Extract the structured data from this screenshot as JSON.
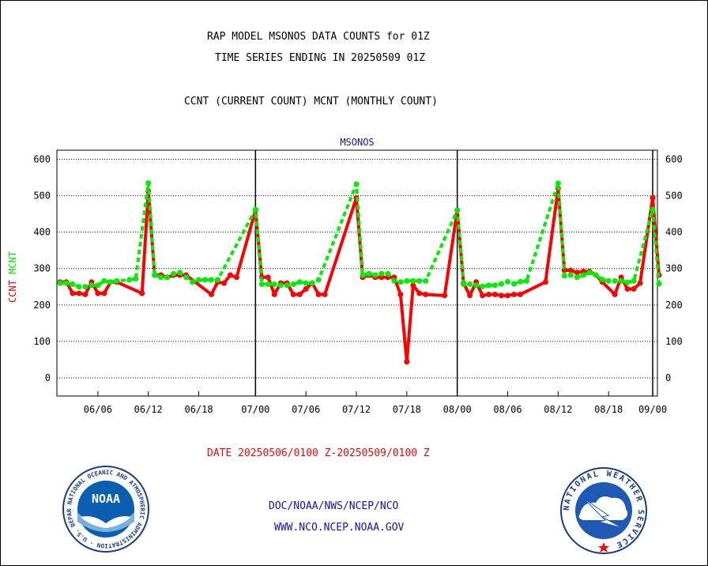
{
  "header": {
    "title": "RAP MODEL MSONOS DATA COUNTS for 01Z",
    "time_series": "TIME SERIES ENDING IN 20250509 01Z",
    "subtitle": "CCNT (CURRENT COUNT) MCNT (MONTHLY COUNT)"
  },
  "footer": {
    "date_range": "DATE 20250506/0100 Z-20250509/0100 Z",
    "org_path": "DOC/NOAA/NWS/NCEP/NCO",
    "org_url": "WWW.NCO.NCEP.NOAA.GOV"
  },
  "logos": {
    "noaa": {
      "text": "NOAA",
      "ring_text": "NATIONAL OCEANIC AND ATMOSPHERIC ADMINISTRATION · U.S. DEPARTMENT OF COMMERCE"
    },
    "nws": {
      "ring_text": "NATIONAL WEATHER SERVICE"
    }
  },
  "chart_data": {
    "type": "line",
    "title": "MSONOS",
    "ylabel_ccnt": "CCNT",
    "ylabel_mcnt": "MCNT",
    "ylim": [
      -50,
      625
    ],
    "yticks": [
      0,
      100,
      200,
      300,
      400,
      500,
      600
    ],
    "xlim": [
      0,
      94
    ],
    "grid": true,
    "colors": {
      "CCNT": "#ff0000",
      "MCNT": "#00ee00",
      "title": "#1010c0"
    },
    "x_tick_labels": [
      {
        "x": 6,
        "label": "06/06"
      },
      {
        "x": 14,
        "label": "06/12"
      },
      {
        "x": 22,
        "label": "06/18"
      },
      {
        "x": 31,
        "label": "07/00"
      },
      {
        "x": 39,
        "label": "07/06"
      },
      {
        "x": 47,
        "label": "07/12"
      },
      {
        "x": 55,
        "label": "07/18"
      },
      {
        "x": 63,
        "label": "08/00"
      },
      {
        "x": 71,
        "label": "08/06"
      },
      {
        "x": 79,
        "label": "08/12"
      },
      {
        "x": 87,
        "label": "08/18"
      },
      {
        "x": 94,
        "label": "09/00"
      }
    ],
    "day_separators": [
      31,
      63,
      94
    ],
    "series": [
      {
        "name": "CCNT",
        "values": [
          263,
          263,
          232,
          232,
          229,
          263,
          232,
          232,
          263,
          263,
          232,
          513,
          282,
          282,
          276,
          282,
          282,
          282,
          229,
          263,
          260,
          282,
          276,
          460,
          276,
          276,
          229,
          260,
          260,
          229,
          229,
          244,
          260,
          229,
          229,
          494,
          276,
          282,
          276,
          276,
          276,
          276,
          229,
          44,
          254,
          232,
          229,
          226,
          460,
          260,
          226,
          263,
          226,
          229,
          229,
          226,
          226,
          229,
          229,
          263,
          520,
          295,
          295,
          289,
          292,
          292,
          282,
          263,
          229,
          276,
          244,
          244,
          260,
          494,
          282
        ],
        "x": [
          0,
          1,
          2,
          3,
          4,
          5,
          6,
          7,
          8,
          9,
          13,
          14,
          15,
          16,
          17,
          18,
          19,
          20,
          24,
          25,
          26,
          27,
          28,
          31,
          32,
          33,
          34,
          35,
          36,
          37,
          38,
          39,
          40,
          41,
          42,
          47,
          48,
          49,
          50,
          51,
          52,
          53,
          54,
          55,
          56,
          57,
          58,
          61,
          63,
          64,
          65,
          66,
          67,
          68,
          69,
          70,
          71,
          72,
          73,
          77,
          79,
          80,
          81,
          82,
          83,
          84,
          85,
          86,
          88,
          89,
          90,
          91,
          92,
          94,
          95
        ]
      },
      {
        "name": "MCNT",
        "values": [
          260,
          260,
          257,
          250,
          250,
          254,
          254,
          266,
          263,
          266,
          269,
          272,
          535,
          282,
          276,
          276,
          286,
          289,
          276,
          263,
          269,
          269,
          269,
          269,
          462,
          257,
          257,
          257,
          254,
          254,
          257,
          263,
          260,
          260,
          269,
          532,
          282,
          286,
          282,
          286,
          286,
          266,
          263,
          266,
          266,
          266,
          266,
          460,
          257,
          257,
          254,
          251,
          254,
          254,
          258,
          264,
          258,
          264,
          266,
          534,
          280,
          282,
          276,
          282,
          289,
          282,
          270,
          266,
          266,
          266,
          262,
          266,
          462,
          258
        ],
        "x": [
          0,
          1,
          2,
          3,
          4,
          5,
          6,
          7,
          8,
          9,
          11,
          12,
          14,
          15,
          16,
          17,
          18,
          19,
          20,
          21,
          22,
          23,
          24,
          25,
          31,
          32,
          33,
          34,
          35,
          36,
          37,
          38,
          39,
          40,
          41,
          47,
          48,
          49,
          50,
          51,
          52,
          53,
          54,
          55,
          56,
          57,
          58,
          63,
          64,
          65,
          66,
          67,
          68,
          69,
          70,
          71,
          72,
          73,
          74,
          79,
          80,
          81,
          82,
          83,
          84,
          85,
          86,
          87,
          88,
          89,
          90,
          91,
          94,
          95
        ]
      }
    ]
  }
}
